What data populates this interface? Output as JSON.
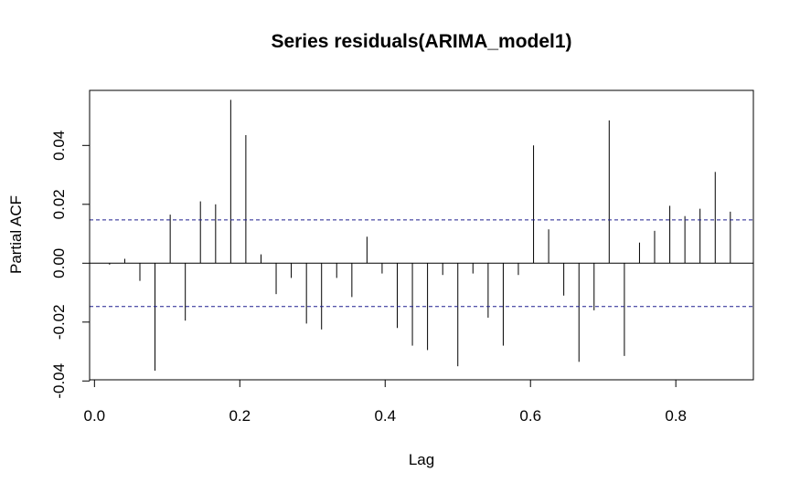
{
  "chart_data": {
    "type": "bar",
    "title": "Series  residuals(ARIMA_model1)",
    "xlabel": "Lag",
    "ylabel": "Partial ACF",
    "xlim": [
      -0.0067,
      0.9067
    ],
    "ylim": [
      -0.0396,
      0.0587
    ],
    "x_ticks": [
      0.0,
      0.2,
      0.4,
      0.6,
      0.8
    ],
    "x_tick_labels": [
      "0.0",
      "0.2",
      "0.4",
      "0.6",
      "0.8"
    ],
    "y_ticks": [
      -0.04,
      -0.02,
      0.0,
      0.02,
      0.04
    ],
    "y_tick_labels": [
      "-0.04",
      "-0.02",
      "0.00",
      "0.02",
      "0.04"
    ],
    "confidence_bound": 0.0147,
    "grid": false,
    "series": [
      {
        "x": [
          0.0208,
          0.0417,
          0.0625,
          0.0833,
          0.1042,
          0.125,
          0.1458,
          0.1667,
          0.1875,
          0.2083,
          0.2292,
          0.25,
          0.2708,
          0.2917,
          0.3125,
          0.3333,
          0.3542,
          0.375,
          0.3958,
          0.4167,
          0.4375,
          0.4583,
          0.4792,
          0.5,
          0.5208,
          0.5417,
          0.5625,
          0.5833,
          0.6042,
          0.625,
          0.6458,
          0.6667,
          0.6875,
          0.7083,
          0.7292,
          0.75,
          0.7708,
          0.7917,
          0.8125,
          0.8333,
          0.8542,
          0.875
        ],
        "values": [
          -0.0005,
          0.0015,
          -0.006,
          -0.0365,
          0.0165,
          -0.0195,
          0.021,
          0.02,
          0.0555,
          0.0435,
          0.003,
          -0.0105,
          -0.005,
          -0.0205,
          -0.0225,
          -0.005,
          -0.0115,
          0.009,
          -0.0035,
          -0.022,
          -0.028,
          -0.0295,
          -0.004,
          -0.035,
          -0.0035,
          -0.0185,
          -0.028,
          -0.004,
          0.04,
          0.0115,
          -0.011,
          -0.0335,
          -0.016,
          0.0485,
          -0.0315,
          0.007,
          0.011,
          0.0195,
          0.016,
          0.0185,
          0.031,
          0.0175
        ]
      }
    ]
  }
}
